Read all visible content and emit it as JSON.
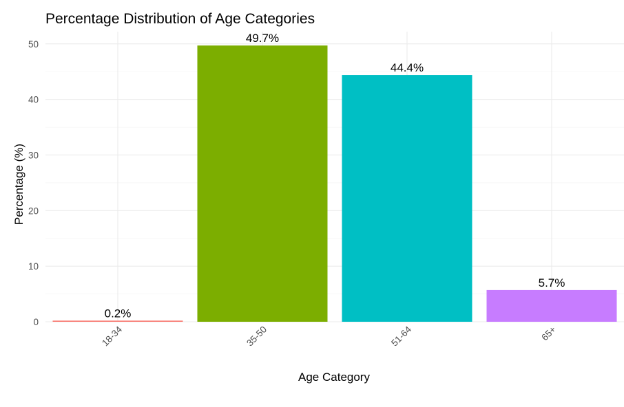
{
  "chart_data": {
    "type": "bar",
    "title": "Percentage Distribution of Age Categories",
    "xlabel": "Age Category",
    "ylabel": "Percentage (%)",
    "categories": [
      "18-34",
      "35-50",
      "51-64",
      "65+"
    ],
    "values": [
      0.2,
      49.7,
      44.4,
      5.7
    ],
    "data_labels": [
      "0.2%",
      "49.7%",
      "44.4%",
      "5.7%"
    ],
    "colors": [
      "#F8766D",
      "#7CAE00",
      "#00BFC4",
      "#C77CFF"
    ],
    "ylim": [
      0,
      52.2
    ],
    "yticks": [
      0,
      10,
      20,
      30,
      40,
      50
    ],
    "ytick_labels": [
      "0",
      "10",
      "20",
      "30",
      "40",
      "50"
    ],
    "grid": true,
    "legend": "none",
    "xtick_rotation": 45
  }
}
